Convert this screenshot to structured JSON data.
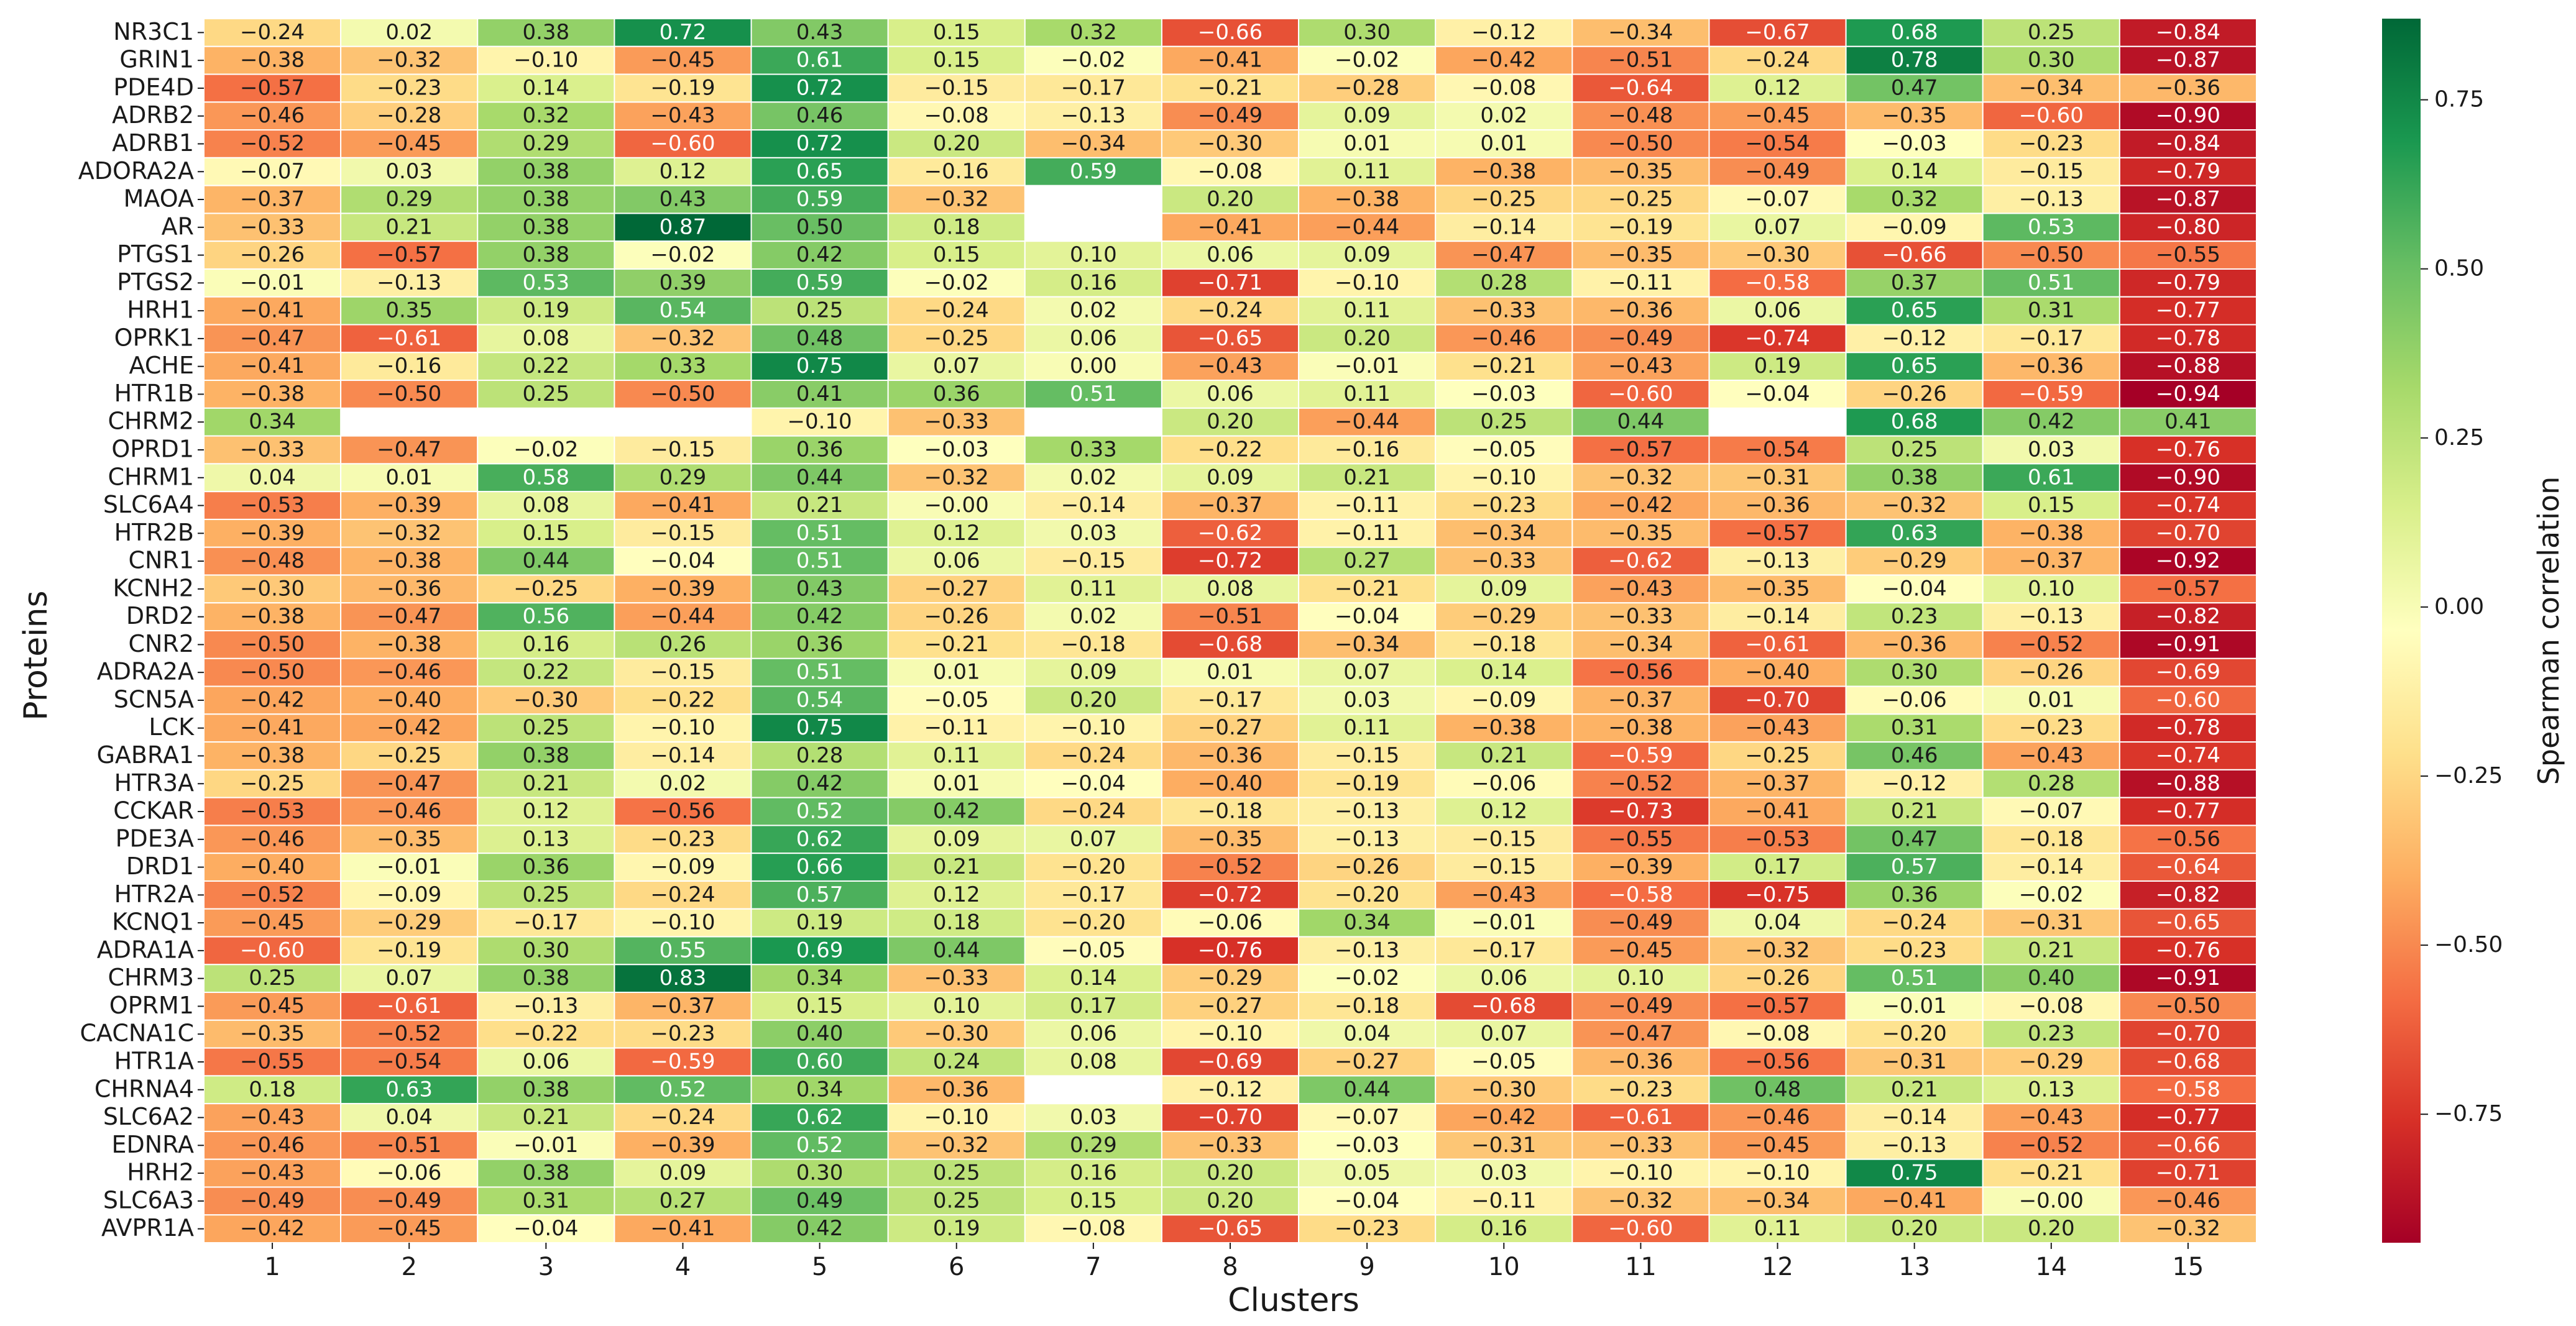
{
  "chart_data": {
    "type": "heatmap",
    "title": "",
    "xlabel": "Clusters",
    "ylabel": "Proteins",
    "colorbar_label": "Spearman correlation",
    "colorbar_range": [
      -0.94,
      0.87
    ],
    "colorbar_ticks": [
      0.75,
      0.5,
      0.25,
      0.0,
      -0.25,
      -0.5,
      -0.75
    ],
    "colorbar_tick_labels": [
      "0.75",
      "0.50",
      "0.25",
      "0.00",
      "−0.25",
      "−0.50",
      "−0.75"
    ],
    "colormap": "RdYlGn",
    "x_categories": [
      "1",
      "2",
      "3",
      "4",
      "5",
      "6",
      "7",
      "8",
      "9",
      "10",
      "11",
      "12",
      "13",
      "14",
      "15"
    ],
    "y_categories": [
      "NR3C1",
      "GRIN1",
      "PDE4D",
      "ADRB2",
      "ADRB1",
      "ADORA2A",
      "MAOA",
      "AR",
      "PTGS1",
      "PTGS2",
      "HRH1",
      "OPRK1",
      "ACHE",
      "HTR1B",
      "CHRM2",
      "OPRD1",
      "CHRM1",
      "SLC6A4",
      "HTR2B",
      "CNR1",
      "KCNH2",
      "DRD2",
      "CNR2",
      "ADRA2A",
      "SCN5A",
      "LCK",
      "GABRA1",
      "HTR3A",
      "CCKAR",
      "PDE3A",
      "DRD1",
      "HTR2A",
      "KCNQ1",
      "ADRA1A",
      "CHRM3",
      "OPRM1",
      "CACNA1C",
      "HTR1A",
      "CHRNA4",
      "SLC6A2",
      "EDNRA",
      "HRH2",
      "SLC6A3",
      "AVPR1A"
    ],
    "values": [
      [
        -0.24,
        0.02,
        0.38,
        0.72,
        0.43,
        0.15,
        0.32,
        -0.66,
        0.3,
        -0.12,
        -0.34,
        -0.67,
        0.68,
        0.25,
        -0.84
      ],
      [
        -0.38,
        -0.32,
        -0.1,
        -0.45,
        0.61,
        0.15,
        -0.02,
        -0.41,
        -0.02,
        -0.42,
        -0.51,
        -0.24,
        0.78,
        0.3,
        -0.87
      ],
      [
        -0.57,
        -0.23,
        0.14,
        -0.19,
        0.72,
        -0.15,
        -0.17,
        -0.21,
        -0.28,
        -0.08,
        -0.64,
        0.12,
        0.47,
        -0.34,
        -0.36
      ],
      [
        -0.46,
        -0.28,
        0.32,
        -0.43,
        0.46,
        -0.08,
        -0.13,
        -0.49,
        0.09,
        0.02,
        -0.48,
        -0.45,
        -0.35,
        -0.6,
        -0.9
      ],
      [
        -0.52,
        -0.45,
        0.29,
        -0.6,
        0.72,
        0.2,
        -0.34,
        -0.3,
        0.01,
        0.01,
        -0.5,
        -0.54,
        -0.03,
        -0.23,
        -0.84
      ],
      [
        -0.07,
        0.03,
        0.38,
        0.12,
        0.65,
        -0.16,
        0.59,
        -0.08,
        0.11,
        -0.38,
        -0.35,
        -0.49,
        0.14,
        -0.15,
        -0.79
      ],
      [
        -0.37,
        0.29,
        0.38,
        0.43,
        0.59,
        -0.32,
        null,
        0.2,
        -0.38,
        -0.25,
        -0.25,
        -0.07,
        0.32,
        -0.13,
        -0.87
      ],
      [
        -0.33,
        0.21,
        0.38,
        0.87,
        0.5,
        0.18,
        null,
        -0.41,
        -0.44,
        -0.14,
        -0.19,
        0.07,
        -0.09,
        0.53,
        -0.8
      ],
      [
        -0.26,
        -0.57,
        0.38,
        -0.02,
        0.42,
        0.15,
        0.1,
        0.06,
        0.09,
        -0.47,
        -0.35,
        -0.3,
        -0.66,
        -0.5,
        -0.55
      ],
      [
        -0.01,
        -0.13,
        0.53,
        0.39,
        0.59,
        -0.02,
        0.16,
        -0.71,
        -0.1,
        0.28,
        -0.11,
        -0.58,
        0.37,
        0.51,
        -0.79
      ],
      [
        -0.41,
        0.35,
        0.19,
        0.54,
        0.25,
        -0.24,
        0.02,
        -0.24,
        0.11,
        -0.33,
        -0.36,
        0.06,
        0.65,
        0.31,
        -0.77
      ],
      [
        -0.47,
        -0.61,
        0.08,
        -0.32,
        0.48,
        -0.25,
        0.06,
        -0.65,
        0.2,
        -0.46,
        -0.49,
        -0.74,
        -0.12,
        -0.17,
        -0.78
      ],
      [
        -0.41,
        -0.16,
        0.22,
        0.33,
        0.75,
        0.07,
        0.0,
        -0.43,
        -0.01,
        -0.21,
        -0.43,
        0.19,
        0.65,
        -0.36,
        -0.88
      ],
      [
        -0.38,
        -0.5,
        0.25,
        -0.5,
        0.41,
        0.36,
        0.51,
        0.06,
        0.11,
        -0.03,
        -0.6,
        -0.04,
        -0.26,
        -0.59,
        -0.94
      ],
      [
        0.34,
        null,
        null,
        null,
        -0.1,
        -0.33,
        null,
        0.2,
        -0.44,
        0.25,
        0.44,
        null,
        0.68,
        0.42,
        0.41
      ],
      [
        -0.33,
        -0.47,
        -0.02,
        -0.15,
        0.36,
        -0.03,
        0.33,
        -0.22,
        -0.16,
        -0.05,
        -0.57,
        -0.54,
        0.25,
        0.03,
        -0.76
      ],
      [
        0.04,
        0.01,
        0.58,
        0.29,
        0.44,
        -0.32,
        0.02,
        0.09,
        0.21,
        -0.1,
        -0.32,
        -0.31,
        0.38,
        0.61,
        -0.9
      ],
      [
        -0.53,
        -0.39,
        0.08,
        -0.41,
        0.21,
        -0.0,
        -0.14,
        -0.37,
        -0.11,
        -0.23,
        -0.42,
        -0.36,
        -0.32,
        0.15,
        -0.74
      ],
      [
        -0.39,
        -0.32,
        0.15,
        -0.15,
        0.51,
        0.12,
        0.03,
        -0.62,
        -0.11,
        -0.34,
        -0.35,
        -0.57,
        0.63,
        -0.38,
        -0.7
      ],
      [
        -0.48,
        -0.38,
        0.44,
        -0.04,
        0.51,
        0.06,
        -0.15,
        -0.72,
        0.27,
        -0.33,
        -0.62,
        -0.13,
        -0.29,
        -0.37,
        -0.92
      ],
      [
        -0.3,
        -0.36,
        -0.25,
        -0.39,
        0.43,
        -0.27,
        0.11,
        0.08,
        -0.21,
        0.09,
        -0.43,
        -0.35,
        -0.04,
        0.1,
        -0.57
      ],
      [
        -0.38,
        -0.47,
        0.56,
        -0.44,
        0.42,
        -0.26,
        0.02,
        -0.51,
        -0.04,
        -0.29,
        -0.33,
        -0.14,
        0.23,
        -0.13,
        -0.82
      ],
      [
        -0.5,
        -0.38,
        0.16,
        0.26,
        0.36,
        -0.21,
        -0.18,
        -0.68,
        -0.34,
        -0.18,
        -0.34,
        -0.61,
        -0.36,
        -0.52,
        -0.91
      ],
      [
        -0.5,
        -0.46,
        0.22,
        -0.15,
        0.51,
        0.01,
        0.09,
        0.01,
        0.07,
        0.14,
        -0.56,
        -0.4,
        0.3,
        -0.26,
        -0.69
      ],
      [
        -0.42,
        -0.4,
        -0.3,
        -0.22,
        0.54,
        -0.05,
        0.2,
        -0.17,
        0.03,
        -0.09,
        -0.37,
        -0.7,
        -0.06,
        0.01,
        -0.6
      ],
      [
        -0.41,
        -0.42,
        0.25,
        -0.1,
        0.75,
        -0.11,
        -0.1,
        -0.27,
        0.11,
        -0.38,
        -0.38,
        -0.43,
        0.31,
        -0.23,
        -0.78
      ],
      [
        -0.38,
        -0.25,
        0.38,
        -0.14,
        0.28,
        0.11,
        -0.24,
        -0.36,
        -0.15,
        0.21,
        -0.59,
        -0.25,
        0.46,
        -0.43,
        -0.74
      ],
      [
        -0.25,
        -0.47,
        0.21,
        0.02,
        0.42,
        0.01,
        -0.04,
        -0.4,
        -0.19,
        -0.06,
        -0.52,
        -0.37,
        -0.12,
        0.28,
        -0.88
      ],
      [
        -0.53,
        -0.46,
        0.12,
        -0.56,
        0.52,
        0.42,
        -0.24,
        -0.18,
        -0.13,
        0.12,
        -0.73,
        -0.41,
        0.21,
        -0.07,
        -0.77
      ],
      [
        -0.46,
        -0.35,
        0.13,
        -0.23,
        0.62,
        0.09,
        0.07,
        -0.35,
        -0.13,
        -0.15,
        -0.55,
        -0.53,
        0.47,
        -0.18,
        -0.56
      ],
      [
        -0.4,
        -0.01,
        0.36,
        -0.09,
        0.66,
        0.21,
        -0.2,
        -0.52,
        -0.26,
        -0.15,
        -0.39,
        0.17,
        0.57,
        -0.14,
        -0.64
      ],
      [
        -0.52,
        -0.09,
        0.25,
        -0.24,
        0.57,
        0.12,
        -0.17,
        -0.72,
        -0.2,
        -0.43,
        -0.58,
        -0.75,
        0.36,
        -0.02,
        -0.82
      ],
      [
        -0.45,
        -0.29,
        -0.17,
        -0.1,
        0.19,
        0.18,
        -0.2,
        -0.06,
        0.34,
        -0.01,
        -0.49,
        0.04,
        -0.24,
        -0.31,
        -0.65
      ],
      [
        -0.6,
        -0.19,
        0.3,
        0.55,
        0.69,
        0.44,
        -0.05,
        -0.76,
        -0.13,
        -0.17,
        -0.45,
        -0.32,
        -0.23,
        0.21,
        -0.76
      ],
      [
        0.25,
        0.07,
        0.38,
        0.83,
        0.34,
        -0.33,
        0.14,
        -0.29,
        -0.02,
        0.06,
        0.1,
        -0.26,
        0.51,
        0.4,
        -0.91
      ],
      [
        -0.45,
        -0.61,
        -0.13,
        -0.37,
        0.15,
        0.1,
        0.17,
        -0.27,
        -0.18,
        -0.68,
        -0.49,
        -0.57,
        -0.01,
        -0.08,
        -0.5
      ],
      [
        -0.35,
        -0.52,
        -0.22,
        -0.23,
        0.4,
        -0.3,
        0.06,
        -0.1,
        0.04,
        0.07,
        -0.47,
        -0.08,
        -0.2,
        0.23,
        -0.7
      ],
      [
        -0.55,
        -0.54,
        0.06,
        -0.59,
        0.6,
        0.24,
        0.08,
        -0.69,
        -0.27,
        -0.05,
        -0.36,
        -0.56,
        -0.31,
        -0.29,
        -0.68
      ],
      [
        0.18,
        0.63,
        0.38,
        0.52,
        0.34,
        -0.36,
        null,
        -0.12,
        0.44,
        -0.3,
        -0.23,
        0.48,
        0.21,
        0.13,
        -0.58
      ],
      [
        -0.43,
        0.04,
        0.21,
        -0.24,
        0.62,
        -0.1,
        0.03,
        -0.7,
        -0.07,
        -0.42,
        -0.61,
        -0.46,
        -0.14,
        -0.43,
        -0.77
      ],
      [
        -0.46,
        -0.51,
        -0.01,
        -0.39,
        0.52,
        -0.32,
        0.29,
        -0.33,
        -0.03,
        -0.31,
        -0.33,
        -0.45,
        -0.13,
        -0.52,
        -0.66
      ],
      [
        -0.43,
        -0.06,
        0.38,
        0.09,
        0.3,
        0.25,
        0.16,
        0.2,
        0.05,
        0.03,
        -0.1,
        -0.1,
        0.75,
        -0.21,
        -0.71
      ],
      [
        -0.49,
        -0.49,
        0.31,
        0.27,
        0.49,
        0.25,
        0.15,
        0.2,
        -0.04,
        -0.11,
        -0.32,
        -0.34,
        -0.41,
        -0.0,
        -0.46
      ],
      [
        -0.42,
        -0.45,
        -0.04,
        -0.41,
        0.42,
        0.19,
        -0.08,
        -0.65,
        -0.23,
        0.16,
        -0.6,
        0.11,
        0.2,
        0.2,
        -0.32
      ]
    ]
  }
}
